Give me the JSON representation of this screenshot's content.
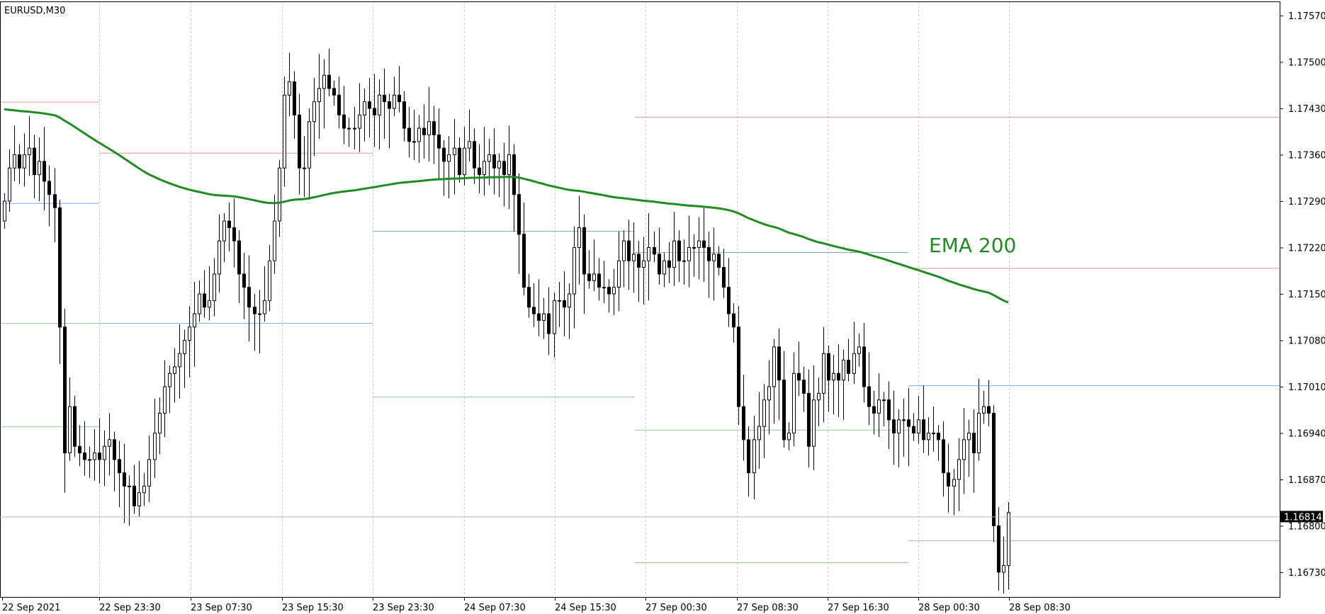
{
  "symbol_label": "EURUSD,M30",
  "colors": {
    "background": "#ffffff",
    "candle": "#000000",
    "ema": "#1e8c1e",
    "r_level": "#e8968c",
    "pp_level": "#7aaee0",
    "s_level": "#8fcf8f",
    "grid": "#c8c8c8",
    "current_price_line": "#b4b4b4"
  },
  "chart_data": {
    "type": "candlestick",
    "title": "",
    "x_ticks": [
      "22 Sep 2021",
      "22 Sep 23:30",
      "23 Sep 07:30",
      "23 Sep 15:30",
      "23 Sep 23:30",
      "24 Sep 07:30",
      "24 Sep 15:30",
      "27 Sep 00:30",
      "27 Sep 08:30",
      "27 Sep 16:30",
      "28 Sep 00:30",
      "28 Sep 08:30"
    ],
    "y_ticks": [
      "1.17570",
      "1.17500",
      "1.17430",
      "1.17360",
      "1.17290",
      "1.17220",
      "1.17150",
      "1.17080",
      "1.17010",
      "1.16940",
      "1.16870",
      "1.16800",
      "1.16730"
    ],
    "ylim": [
      1.167,
      1.1761
    ],
    "current_price": 1.16814,
    "current_price_label": "1.16814",
    "ema_label": "EMA 200",
    "closes": [
      1.1729,
      1.1734,
      1.1736,
      1.1734,
      1.1736,
      1.1737,
      1.1733,
      1.1735,
      1.1732,
      1.173,
      1.1728,
      1.171,
      1.1691,
      1.1698,
      1.1692,
      1.1691,
      1.169,
      1.169,
      1.1691,
      1.169,
      1.1692,
      1.1693,
      1.169,
      1.1688,
      1.1686,
      1.1686,
      1.1683,
      1.1685,
      1.1686,
      1.169,
      1.1694,
      1.1697,
      1.1701,
      1.1703,
      1.1704,
      1.1706,
      1.1708,
      1.171,
      1.1712,
      1.1715,
      1.1713,
      1.1714,
      1.1718,
      1.1723,
      1.1726,
      1.1725,
      1.1723,
      1.1718,
      1.1716,
      1.1713,
      1.1712,
      1.1712,
      1.1714,
      1.172,
      1.1726,
      1.1734,
      1.1745,
      1.1747,
      1.1742,
      1.1734,
      1.1734,
      1.1741,
      1.1744,
      1.1746,
      1.1748,
      1.1746,
      1.1745,
      1.1742,
      1.174,
      1.174,
      1.174,
      1.1742,
      1.1744,
      1.1743,
      1.1742,
      1.1745,
      1.1744,
      1.1743,
      1.1745,
      1.1744,
      1.174,
      1.1738,
      1.1738,
      1.174,
      1.1739,
      1.1741,
      1.1739,
      1.1737,
      1.1735,
      1.1736,
      1.1737,
      1.1733,
      1.1737,
      1.1738,
      1.1734,
      1.1733,
      1.1735,
      1.1736,
      1.1734,
      1.1735,
      1.1733,
      1.1736,
      1.173,
      1.1724,
      1.1716,
      1.1713,
      1.1712,
      1.1711,
      1.1712,
      1.1709,
      1.1714,
      1.1714,
      1.1713,
      1.1715,
      1.1722,
      1.1725,
      1.1718,
      1.1717,
      1.1718,
      1.1716,
      1.1716,
      1.1715,
      1.1716,
      1.172,
      1.1723,
      1.172,
      1.1721,
      1.1719,
      1.172,
      1.1722,
      1.1721,
      1.1718,
      1.172,
      1.1719,
      1.1723,
      1.172,
      1.172,
      1.1722,
      1.1722,
      1.1723,
      1.1722,
      1.172,
      1.1721,
      1.1719,
      1.1716,
      1.1712,
      1.171,
      1.1698,
      1.1693,
      1.1688,
      1.1693,
      1.1695,
      1.1699,
      1.1701,
      1.1707,
      1.1702,
      1.1693,
      1.1694,
      1.1703,
      1.1702,
      1.17,
      1.1692,
      1.1699,
      1.17,
      1.1706,
      1.1702,
      1.1703,
      1.1702,
      1.1705,
      1.1703,
      1.1706,
      1.1707,
      1.1701,
      1.1698,
      1.1697,
      1.1699,
      1.1699,
      1.1696,
      1.1694,
      1.1696,
      1.1696,
      1.1695,
      1.1694,
      1.1696,
      1.1693,
      1.1694,
      1.1694,
      1.1693,
      1.1688,
      1.1686,
      1.1687,
      1.169,
      1.1693,
      1.1694,
      1.1691,
      1.1697,
      1.1698,
      1.1697,
      1.168,
      1.1673,
      1.1674,
      1.1682
    ]
  }
}
